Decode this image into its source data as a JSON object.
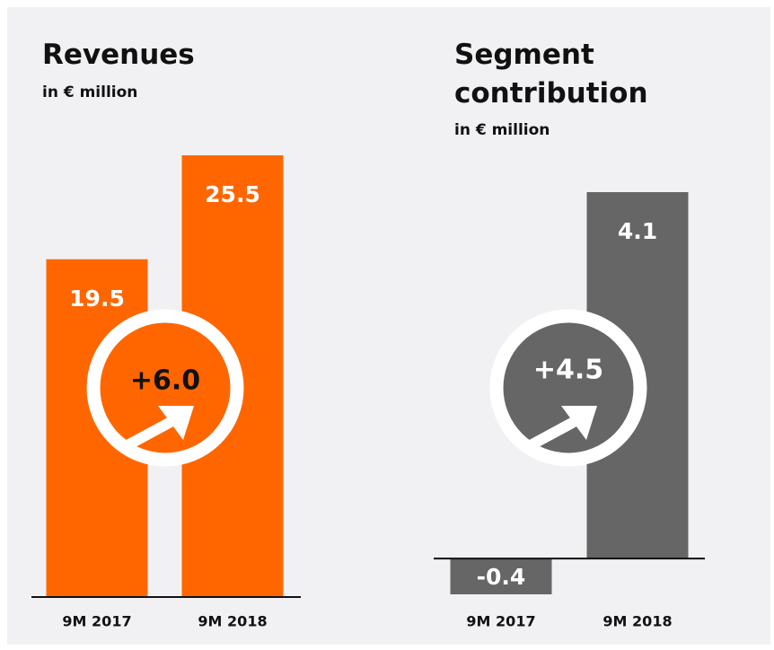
{
  "chart_data": [
    {
      "type": "bar",
      "title": "Revenues",
      "subtitle": "in € million",
      "categories": [
        "9M 2017",
        "9M 2018"
      ],
      "values": [
        19.5,
        25.5
      ],
      "color": "#ff6600",
      "annotation": "+6.0"
    },
    {
      "type": "bar",
      "title": "Segment contribution",
      "subtitle": "in € million",
      "categories": [
        "9M 2017",
        "9M 2018"
      ],
      "values": [
        -0.4,
        4.1
      ],
      "color": "#666666",
      "annotation": "+4.5"
    }
  ]
}
